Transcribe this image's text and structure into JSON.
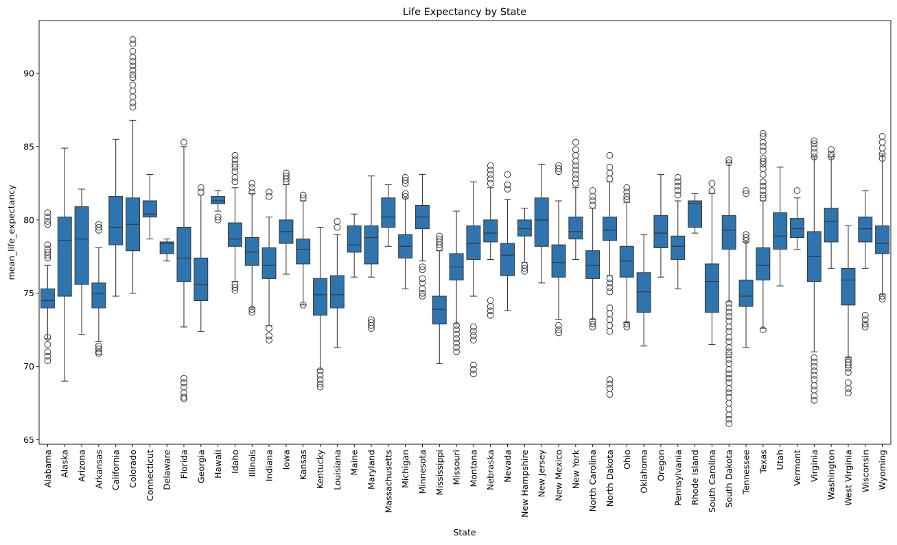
{
  "chart_data": {
    "type": "box",
    "title": "Life Expectancy by State",
    "xlabel": "State",
    "ylabel": "mean_life_expectancy",
    "ylim": [
      64.7,
      93.6
    ],
    "yticks": [
      65,
      70,
      75,
      80,
      85,
      90
    ],
    "grid": false,
    "legend": "none",
    "box_color": "#2e75b0",
    "line_color": "#3a3a3a",
    "categories": [
      "Alabama",
      "Alaska",
      "Arizona",
      "Arkansas",
      "California",
      "Colorado",
      "Connecticut",
      "Delaware",
      "Florida",
      "Georgia",
      "Hawaii",
      "Idaho",
      "Illinois",
      "Indiana",
      "Iowa",
      "Kansas",
      "Kentucky",
      "Louisiana",
      "Maine",
      "Maryland",
      "Massachusetts",
      "Michigan",
      "Minnesota",
      "Mississippi",
      "Missouri",
      "Montana",
      "Nebraska",
      "Nevada",
      "New Hampshire",
      "New Jersey",
      "New Mexico",
      "New York",
      "North Carolina",
      "North Dakota",
      "Ohio",
      "Oklahoma",
      "Oregon",
      "Pennsylvania",
      "Rhode Island",
      "South Carolina",
      "South Dakota",
      "Tennessee",
      "Texas",
      "Utah",
      "Vermont",
      "Virginia",
      "Washington",
      "West Virginia",
      "Wisconsin",
      "Wyoming"
    ],
    "boxes": [
      {
        "min": 71.9,
        "q1": 74.0,
        "median": 74.5,
        "q3": 75.3,
        "max": 76.9,
        "outliers": [
          80.5,
          80.2,
          79.9,
          79.7,
          78.3,
          78.0,
          77.8,
          77.6,
          77.4,
          72.0,
          71.5,
          71.0,
          70.7,
          70.4
        ]
      },
      {
        "min": 69.0,
        "q1": 74.8,
        "median": 78.6,
        "q3": 80.2,
        "max": 84.9,
        "outliers": []
      },
      {
        "min": 72.2,
        "q1": 75.6,
        "median": 78.7,
        "q3": 80.9,
        "max": 82.1,
        "outliers": []
      },
      {
        "min": 71.7,
        "q1": 74.0,
        "median": 75.0,
        "q3": 75.7,
        "max": 78.1,
        "outliers": [
          79.7,
          79.5,
          79.3,
          71.4,
          71.2,
          71.0,
          70.9
        ]
      },
      {
        "min": 74.8,
        "q1": 78.3,
        "median": 79.5,
        "q3": 81.6,
        "max": 85.5,
        "outliers": []
      },
      {
        "min": 75.0,
        "q1": 77.9,
        "median": 79.7,
        "q3": 81.5,
        "max": 86.8,
        "outliers": [
          92.3,
          92.0,
          91.5,
          91.1,
          90.8,
          90.5,
          90.2,
          89.9,
          89.7,
          89.2,
          88.8,
          88.4,
          88.0,
          87.7
        ]
      },
      {
        "min": 78.7,
        "q1": 80.2,
        "median": 80.4,
        "q3": 81.3,
        "max": 83.1,
        "outliers": []
      },
      {
        "min": 77.2,
        "q1": 77.7,
        "median": 78.4,
        "q3": 78.5,
        "max": 78.7,
        "outliers": []
      },
      {
        "min": 72.7,
        "q1": 75.8,
        "median": 77.4,
        "q3": 79.5,
        "max": 85.0,
        "outliers": [
          85.3,
          69.2,
          68.9,
          68.6,
          68.2,
          67.9,
          67.8
        ]
      },
      {
        "min": 72.4,
        "q1": 74.5,
        "median": 75.6,
        "q3": 77.4,
        "max": 81.7,
        "outliers": [
          82.2,
          81.9
        ]
      },
      {
        "min": 80.6,
        "q1": 81.1,
        "median": 81.3,
        "q3": 81.6,
        "max": 82.0,
        "outliers": [
          80.2,
          80.0
        ]
      },
      {
        "min": 75.8,
        "q1": 78.2,
        "median": 78.7,
        "q3": 79.8,
        "max": 82.2,
        "outliers": [
          84.4,
          84.1,
          83.8,
          83.6,
          83.3,
          82.9,
          82.6,
          75.6,
          75.4,
          75.2
        ]
      },
      {
        "min": 74.0,
        "q1": 76.9,
        "median": 77.8,
        "q3": 78.8,
        "max": 81.8,
        "outliers": [
          82.5,
          82.2,
          81.9,
          73.9,
          73.7
        ]
      },
      {
        "min": 72.8,
        "q1": 76.0,
        "median": 76.9,
        "q3": 78.1,
        "max": 80.2,
        "outliers": [
          81.9,
          81.6,
          72.6,
          72.1,
          71.8
        ]
      },
      {
        "min": 76.3,
        "q1": 78.4,
        "median": 79.2,
        "q3": 80.0,
        "max": 82.4,
        "outliers": [
          83.2,
          83.0,
          82.8,
          82.6
        ]
      },
      {
        "min": 74.2,
        "q1": 77.0,
        "median": 78.0,
        "q3": 78.7,
        "max": 81.3,
        "outliers": [
          81.7,
          81.5,
          74.2
        ]
      },
      {
        "min": 69.8,
        "q1": 73.5,
        "median": 74.9,
        "q3": 76.0,
        "max": 79.5,
        "outliers": [
          69.7,
          69.4,
          69.1,
          68.8,
          68.6
        ]
      },
      {
        "min": 71.3,
        "q1": 74.0,
        "median": 74.9,
        "q3": 76.2,
        "max": 79.0,
        "outliers": [
          79.9,
          79.5
        ]
      },
      {
        "min": 76.1,
        "q1": 77.8,
        "median": 78.3,
        "q3": 79.6,
        "max": 80.4,
        "outliers": []
      },
      {
        "min": 76.1,
        "q1": 77.0,
        "median": 78.8,
        "q3": 79.6,
        "max": 83.0,
        "outliers": [
          73.2,
          73.0,
          72.8,
          72.6
        ]
      },
      {
        "min": 78.2,
        "q1": 79.5,
        "median": 80.2,
        "q3": 81.5,
        "max": 82.4,
        "outliers": []
      },
      {
        "min": 75.3,
        "q1": 77.4,
        "median": 78.2,
        "q3": 79.0,
        "max": 81.5,
        "outliers": [
          82.9,
          82.7,
          82.5,
          81.8,
          81.6
        ]
      },
      {
        "min": 77.2,
        "q1": 79.4,
        "median": 80.2,
        "q3": 81.0,
        "max": 83.1,
        "outliers": [
          76.8,
          76.6,
          76.0,
          75.7,
          75.3,
          75.0,
          74.8
        ]
      },
      {
        "min": 70.2,
        "q1": 72.9,
        "median": 73.9,
        "q3": 74.8,
        "max": 77.9,
        "outliers": [
          78.9,
          78.7,
          78.5,
          78.3,
          78.1
        ]
      },
      {
        "min": 72.9,
        "q1": 75.9,
        "median": 76.8,
        "q3": 77.7,
        "max": 80.6,
        "outliers": [
          72.8,
          72.5,
          72.2,
          71.9,
          71.6,
          71.3,
          71.0
        ]
      },
      {
        "min": 74.8,
        "q1": 77.3,
        "median": 78.4,
        "q3": 79.6,
        "max": 82.6,
        "outliers": [
          72.7,
          72.4,
          72.1,
          71.8,
          70.1,
          69.8,
          69.5
        ]
      },
      {
        "min": 77.3,
        "q1": 78.5,
        "median": 79.1,
        "q3": 80.0,
        "max": 82.2,
        "outliers": [
          83.7,
          83.4,
          83.1,
          82.8,
          82.5,
          74.5,
          74.1,
          73.8,
          73.5
        ]
      },
      {
        "min": 73.8,
        "q1": 76.2,
        "median": 77.6,
        "q3": 78.4,
        "max": 81.4,
        "outliers": [
          83.1,
          82.4,
          82.1
        ]
      },
      {
        "min": 77.1,
        "q1": 78.9,
        "median": 79.4,
        "q3": 80.0,
        "max": 80.8,
        "outliers": [
          76.9,
          76.7,
          76.5
        ]
      },
      {
        "min": 75.7,
        "q1": 78.2,
        "median": 80.0,
        "q3": 81.5,
        "max": 83.8,
        "outliers": []
      },
      {
        "min": 73.2,
        "q1": 76.1,
        "median": 77.1,
        "q3": 78.3,
        "max": 81.3,
        "outliers": [
          83.7,
          83.5,
          83.3,
          72.8,
          72.5,
          72.3
        ]
      },
      {
        "min": 77.3,
        "q1": 78.7,
        "median": 79.2,
        "q3": 80.2,
        "max": 82.2,
        "outliers": [
          85.3,
          84.8,
          84.4,
          84.0,
          83.7,
          83.4,
          83.1,
          82.8,
          82.5
        ]
      },
      {
        "min": 73.2,
        "q1": 76.0,
        "median": 76.9,
        "q3": 77.9,
        "max": 80.8,
        "outliers": [
          82.0,
          81.6,
          81.3,
          81.0,
          73.1,
          72.9,
          72.7
        ]
      },
      {
        "min": 76.2,
        "q1": 78.6,
        "median": 79.3,
        "q3": 80.2,
        "max": 82.6,
        "outliers": [
          84.4,
          83.6,
          83.2,
          82.8,
          76.0,
          75.7,
          75.4,
          75.1,
          74.0,
          73.6,
          73.2,
          72.8,
          72.4,
          69.1,
          68.8,
          68.5,
          68.1
        ]
      },
      {
        "min": 73.0,
        "q1": 76.1,
        "median": 77.2,
        "q3": 78.2,
        "max": 81.2,
        "outliers": [
          82.2,
          81.9,
          81.6,
          81.4,
          72.9,
          72.7
        ]
      },
      {
        "min": 71.4,
        "q1": 73.7,
        "median": 75.1,
        "q3": 76.4,
        "max": 79.0,
        "outliers": []
      },
      {
        "min": 76.1,
        "q1": 78.1,
        "median": 79.1,
        "q3": 80.3,
        "max": 83.1,
        "outliers": []
      },
      {
        "min": 75.3,
        "q1": 77.3,
        "median": 78.2,
        "q3": 78.9,
        "max": 81.3,
        "outliers": [
          82.9,
          82.6,
          82.3,
          82.0,
          81.7
        ]
      },
      {
        "min": 79.1,
        "q1": 79.5,
        "median": 81.1,
        "q3": 81.3,
        "max": 81.8,
        "outliers": []
      },
      {
        "min": 71.5,
        "q1": 73.7,
        "median": 75.8,
        "q3": 77.0,
        "max": 81.8,
        "outliers": [
          82.5,
          82.0
        ]
      },
      {
        "min": 74.4,
        "q1": 78.0,
        "median": 79.3,
        "q3": 80.3,
        "max": 83.9,
        "outliers": [
          84.1,
          83.9,
          74.3,
          74.0,
          73.7,
          73.4,
          73.1,
          72.7,
          72.4,
          72.0,
          71.7,
          71.3,
          71.0,
          70.8,
          70.5,
          70.2,
          69.8,
          69.5,
          69.2,
          68.9,
          68.5,
          68.2,
          67.9,
          67.5,
          67.1,
          66.7,
          66.4,
          66.1
        ]
      },
      {
        "min": 71.3,
        "q1": 74.1,
        "median": 74.8,
        "q3": 75.9,
        "max": 78.5,
        "outliers": [
          82.0,
          81.8,
          79.0,
          78.8,
          78.6
        ]
      },
      {
        "min": 72.6,
        "q1": 75.9,
        "median": 76.9,
        "q3": 78.1,
        "max": 81.3,
        "outliers": [
          85.9,
          85.7,
          85.3,
          85.0,
          84.7,
          84.2,
          84.0,
          83.8,
          83.5,
          83.1,
          82.6,
          82.3,
          82.0,
          81.7,
          81.5,
          72.5
        ]
      },
      {
        "min": 75.5,
        "q1": 78.0,
        "median": 78.9,
        "q3": 80.5,
        "max": 83.6,
        "outliers": []
      },
      {
        "min": 78.0,
        "q1": 78.8,
        "median": 79.4,
        "q3": 80.1,
        "max": 81.5,
        "outliers": [
          82.0
        ]
      },
      {
        "min": 71.0,
        "q1": 75.8,
        "median": 77.5,
        "q3": 79.2,
        "max": 84.3,
        "outliers": [
          85.4,
          85.2,
          84.9,
          84.6,
          84.3,
          70.6,
          70.3,
          70.0,
          69.7,
          69.4,
          69.1,
          68.7,
          68.4,
          68.0,
          67.7
        ]
      },
      {
        "min": 76.7,
        "q1": 78.5,
        "median": 79.9,
        "q3": 80.8,
        "max": 84.3,
        "outliers": [
          84.8,
          84.5,
          84.3
        ]
      },
      {
        "min": 70.6,
        "q1": 74.2,
        "median": 75.9,
        "q3": 76.7,
        "max": 79.6,
        "outliers": [
          70.5,
          70.3,
          70.1,
          69.9,
          69.6,
          68.9,
          68.5,
          68.2
        ]
      },
      {
        "min": 76.7,
        "q1": 78.5,
        "median": 79.4,
        "q3": 80.2,
        "max": 82.0,
        "outliers": [
          73.5,
          73.2,
          72.9,
          72.7
        ]
      },
      {
        "min": 74.9,
        "q1": 77.7,
        "median": 78.4,
        "q3": 79.6,
        "max": 84.5,
        "outliers": [
          85.7,
          85.3,
          84.9,
          84.5,
          84.2,
          74.8,
          74.6
        ]
      }
    ]
  }
}
